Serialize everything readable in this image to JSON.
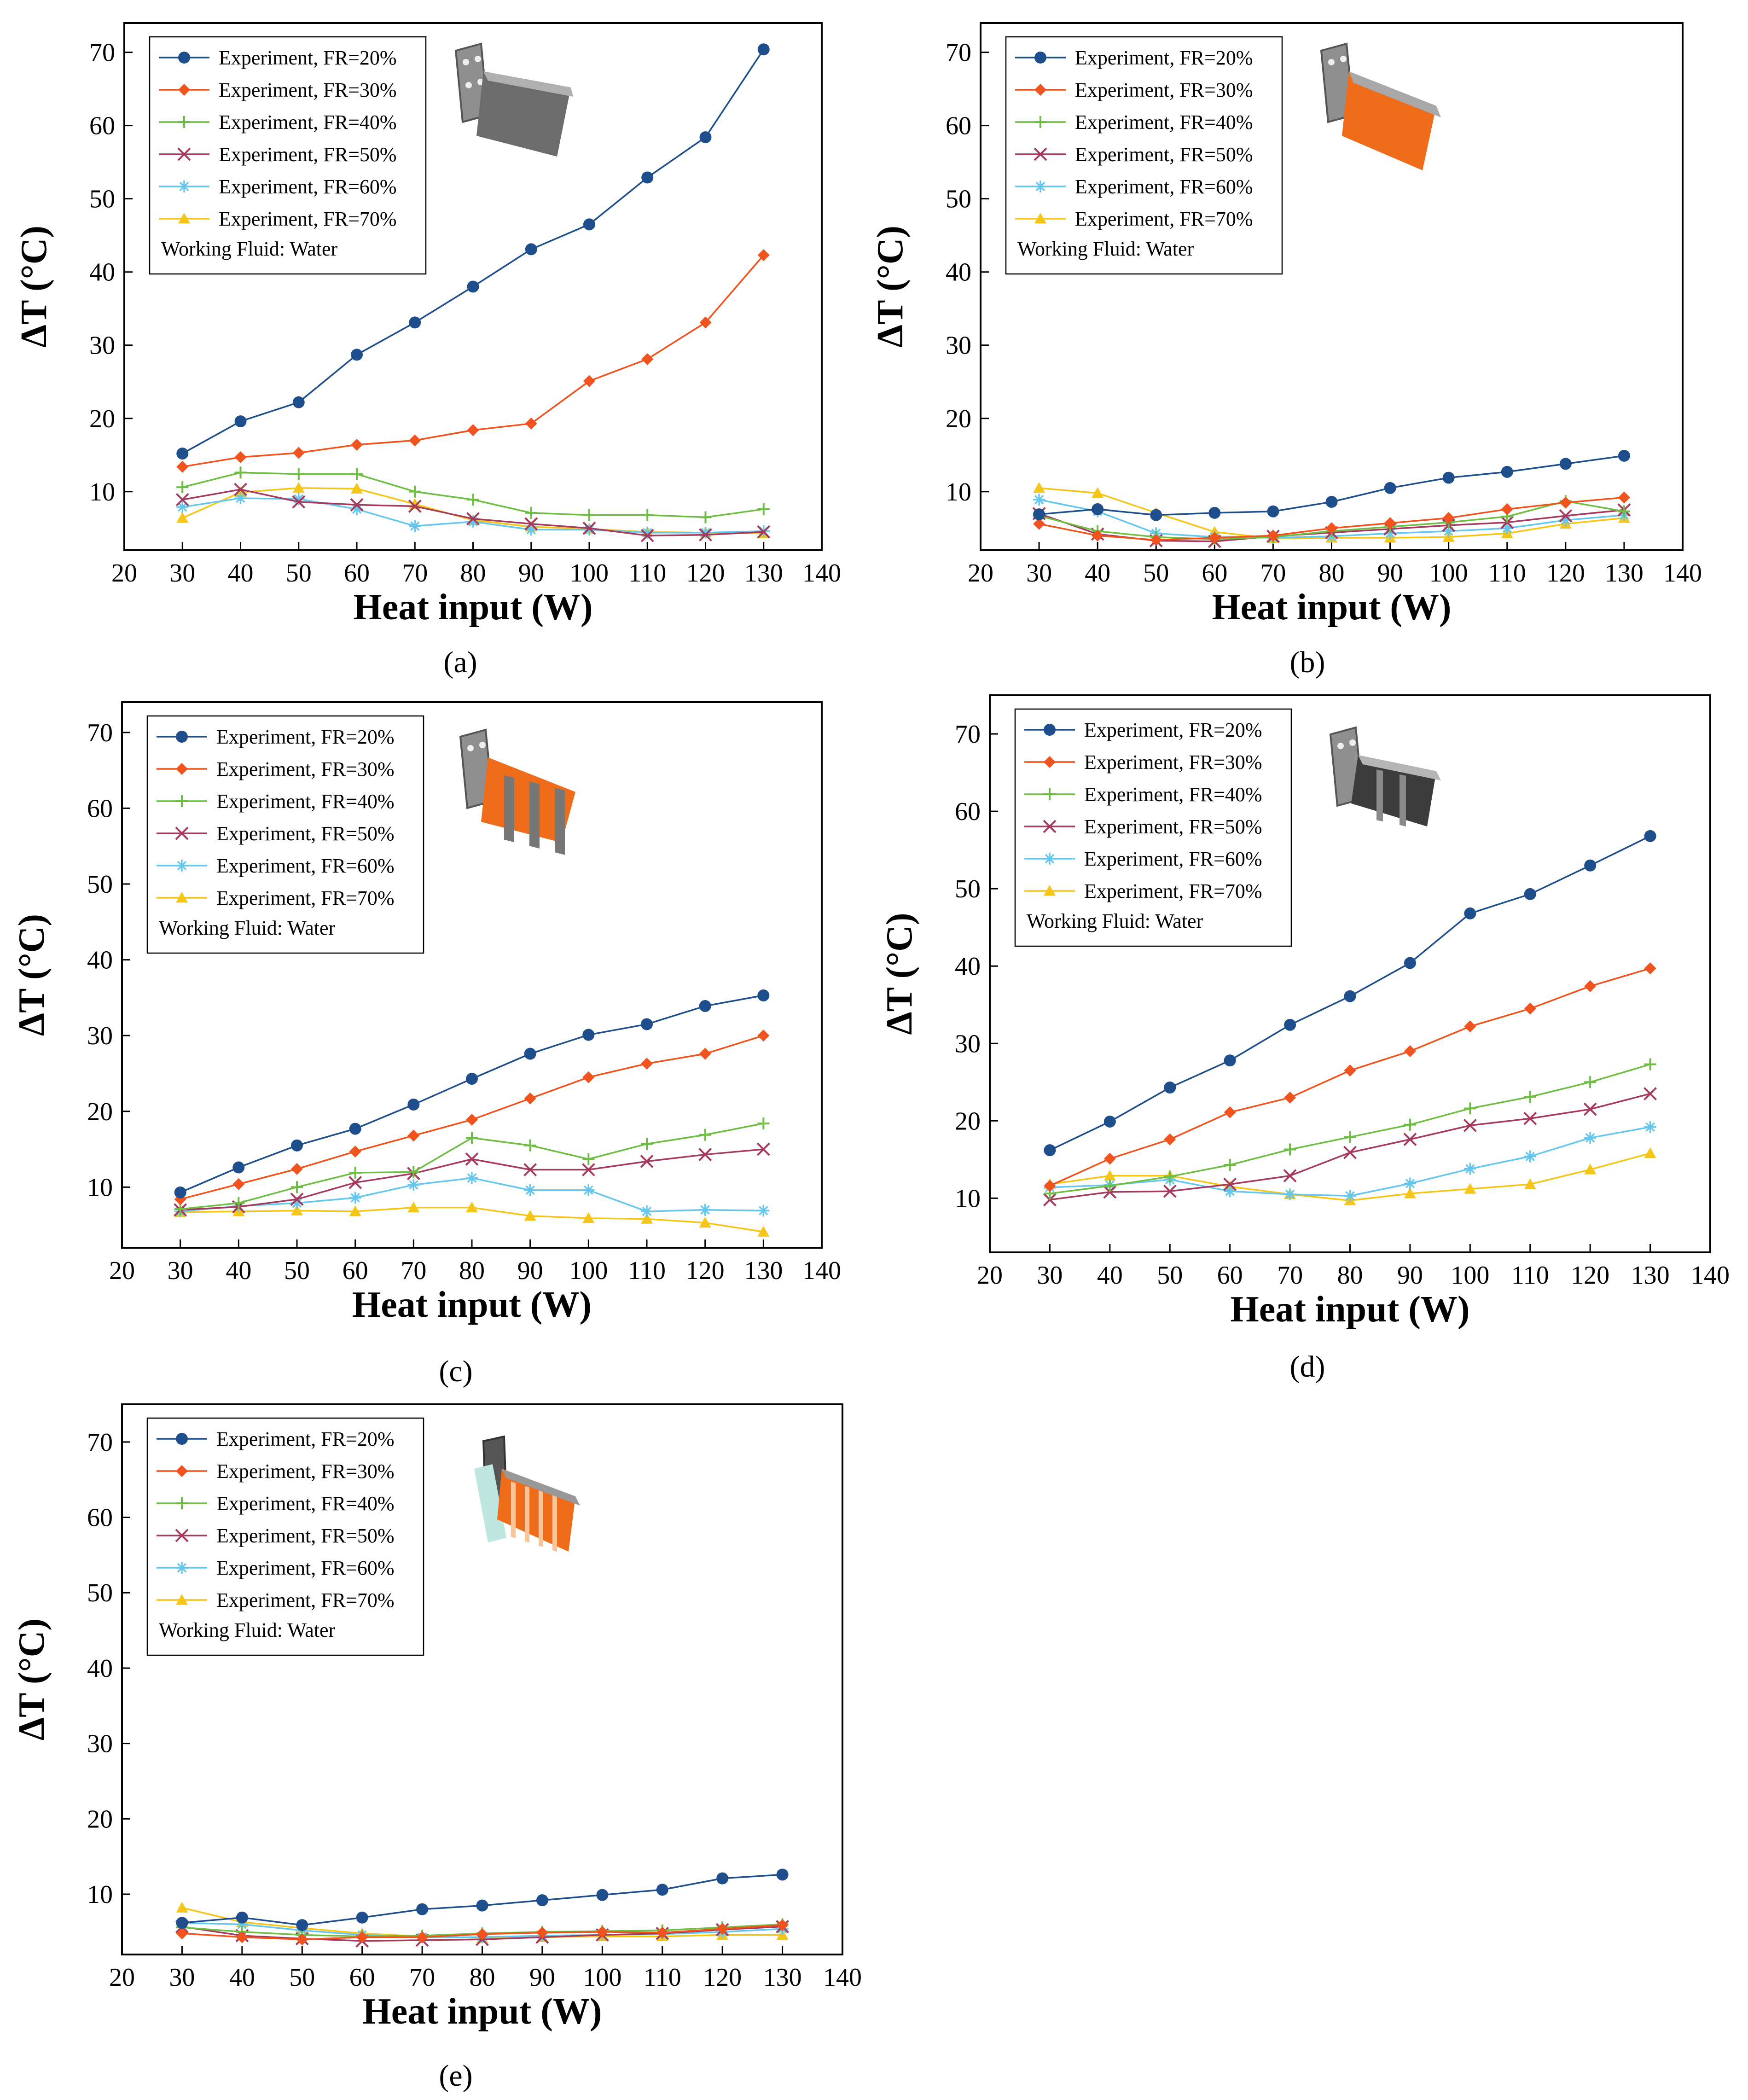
{
  "figure": {
    "panel_labels": [
      "(a)",
      "(b)",
      "(c)",
      "(d)",
      "(e)"
    ]
  },
  "colors": {
    "FR=20%": "#1f4e8c",
    "FR=30%": "#f0531e",
    "FR=40%": "#6fbe44",
    "FR=50%": "#a63a5c",
    "FR=60%": "#66c7ee",
    "FR=70%": "#f5c518"
  },
  "markers": {
    "FR=20%": "circle",
    "FR=30%": "diamond",
    "FR=40%": "plus",
    "FR=50%": "cross",
    "FR=60%": "star",
    "FR=70%": "triangle"
  },
  "chart_data": [
    {
      "type": "line",
      "panel": "(a)",
      "title": "",
      "xlabel": "Heat input (W)",
      "ylabel": "ΔT (°C)",
      "xlim": [
        20,
        140
      ],
      "ylim": [
        2,
        74
      ],
      "xticks": [
        20,
        30,
        40,
        50,
        60,
        70,
        80,
        90,
        100,
        110,
        120,
        130,
        140
      ],
      "yticks": [
        10,
        20,
        30,
        40,
        50,
        60,
        70
      ],
      "legend_note": "Working Fluid: Water",
      "x": [
        30,
        40,
        50,
        60,
        70,
        80,
        90,
        100,
        110,
        120,
        130
      ],
      "series": [
        {
          "name": "Experiment, FR=20%",
          "key": "FR=20%",
          "values": [
            15.2,
            19.6,
            22.2,
            28.7,
            33.1,
            38.0,
            43.1,
            46.5,
            52.9,
            58.4,
            70.4
          ]
        },
        {
          "name": "Experiment, FR=30%",
          "key": "FR=30%",
          "values": [
            13.4,
            14.7,
            15.3,
            16.4,
            17.0,
            18.4,
            19.3,
            25.1,
            28.1,
            33.1,
            42.3
          ]
        },
        {
          "name": "Experiment, FR=40%",
          "key": "FR=40%",
          "values": [
            10.6,
            12.6,
            12.4,
            12.4,
            10.0,
            8.9,
            7.1,
            6.8,
            6.8,
            6.5,
            7.6
          ]
        },
        {
          "name": "Experiment, FR=50%",
          "key": "FR=50%",
          "values": [
            8.9,
            10.3,
            8.6,
            8.2,
            8.0,
            6.3,
            5.6,
            5.0,
            4.0,
            4.1,
            4.5
          ]
        },
        {
          "name": "Experiment, FR=60%",
          "key": "FR=60%",
          "values": [
            7.9,
            9.1,
            9.0,
            7.6,
            5.3,
            5.9,
            4.8,
            4.8,
            4.4,
            4.4,
            4.6
          ]
        },
        {
          "name": "Experiment, FR=70%",
          "key": "FR=70%",
          "values": [
            6.4,
            9.9,
            10.5,
            10.4,
            8.3,
            6.1,
            5.2,
            4.9,
            4.5,
            4.4,
            4.3
          ]
        }
      ]
    },
    {
      "type": "line",
      "panel": "(b)",
      "title": "",
      "xlabel": "Heat input (W)",
      "ylabel": "ΔT (°C)",
      "xlim": [
        20,
        140
      ],
      "ylim": [
        2,
        74
      ],
      "xticks": [
        20,
        30,
        40,
        50,
        60,
        70,
        80,
        90,
        100,
        110,
        120,
        130,
        140
      ],
      "yticks": [
        10,
        20,
        30,
        40,
        50,
        60,
        70
      ],
      "legend_note": "Working Fluid: Water",
      "x": [
        30,
        40,
        50,
        60,
        70,
        80,
        90,
        100,
        110,
        120,
        130
      ],
      "series": [
        {
          "name": "Experiment, FR=20%",
          "key": "FR=20%",
          "values": [
            6.9,
            7.6,
            6.8,
            7.1,
            7.3,
            8.6,
            10.5,
            11.9,
            12.7,
            13.8,
            14.9
          ]
        },
        {
          "name": "Experiment, FR=30%",
          "key": "FR=30%",
          "values": [
            5.6,
            4.0,
            3.4,
            3.7,
            4.0,
            5.0,
            5.7,
            6.4,
            7.6,
            8.5,
            9.2
          ]
        },
        {
          "name": "Experiment, FR=40%",
          "key": "FR=40%",
          "values": [
            6.7,
            4.6,
            3.8,
            3.5,
            3.8,
            4.6,
            5.2,
            5.8,
            6.6,
            8.7,
            7.3
          ]
        },
        {
          "name": "Experiment, FR=50%",
          "key": "FR=50%",
          "values": [
            7.0,
            4.2,
            3.3,
            3.2,
            3.9,
            4.4,
            4.9,
            5.4,
            5.8,
            6.7,
            7.5
          ]
        },
        {
          "name": "Experiment, FR=60%",
          "key": "FR=60%",
          "values": [
            8.9,
            7.3,
            4.3,
            3.8,
            3.7,
            3.9,
            4.3,
            4.6,
            5.0,
            6.1,
            6.8
          ]
        },
        {
          "name": "Experiment, FR=70%",
          "key": "FR=70%",
          "values": [
            10.5,
            9.8,
            7.1,
            4.5,
            3.6,
            3.7,
            3.7,
            3.8,
            4.3,
            5.6,
            6.4
          ]
        }
      ]
    },
    {
      "type": "line",
      "panel": "(c)",
      "title": "",
      "xlabel": "Heat input (W)",
      "ylabel": "ΔT (°C)",
      "xlim": [
        20,
        140
      ],
      "ylim": [
        2,
        74
      ],
      "xticks": [
        20,
        30,
        40,
        50,
        60,
        70,
        80,
        90,
        100,
        110,
        120,
        130,
        140
      ],
      "yticks": [
        10,
        20,
        30,
        40,
        50,
        60,
        70
      ],
      "legend_note": "Working Fluid: Water",
      "x": [
        30,
        40,
        50,
        60,
        70,
        80,
        90,
        100,
        110,
        120,
        130
      ],
      "series": [
        {
          "name": "Experiment, FR=20%",
          "key": "FR=20%",
          "values": [
            9.3,
            12.6,
            15.5,
            17.7,
            20.9,
            24.3,
            27.6,
            30.1,
            31.5,
            33.9,
            35.3
          ]
        },
        {
          "name": "Experiment, FR=30%",
          "key": "FR=30%",
          "values": [
            8.4,
            10.4,
            12.4,
            14.7,
            16.8,
            18.9,
            21.7,
            24.5,
            26.3,
            27.6,
            30.0
          ]
        },
        {
          "name": "Experiment, FR=40%",
          "key": "FR=40%",
          "values": [
            7.1,
            7.9,
            10.0,
            11.9,
            12.0,
            16.5,
            15.5,
            13.7,
            15.7,
            16.9,
            18.4
          ]
        },
        {
          "name": "Experiment, FR=50%",
          "key": "FR=50%",
          "values": [
            7.0,
            7.4,
            8.4,
            10.6,
            11.8,
            13.7,
            12.3,
            12.3,
            13.4,
            14.3,
            15.0
          ]
        },
        {
          "name": "Experiment, FR=60%",
          "key": "FR=60%",
          "values": [
            6.8,
            7.5,
            7.9,
            8.6,
            10.3,
            11.2,
            9.6,
            9.6,
            6.8,
            7.0,
            6.9
          ]
        },
        {
          "name": "Experiment, FR=70%",
          "key": "FR=70%",
          "values": [
            6.7,
            6.8,
            6.9,
            6.8,
            7.3,
            7.3,
            6.2,
            5.9,
            5.8,
            5.3,
            4.1
          ]
        }
      ]
    },
    {
      "type": "line",
      "panel": "(d)",
      "title": "",
      "xlabel": "Heat input (W)",
      "ylabel": "ΔT (°C)",
      "xlim": [
        20,
        140
      ],
      "ylim": [
        3,
        75
      ],
      "xticks": [
        20,
        30,
        40,
        50,
        60,
        70,
        80,
        90,
        100,
        110,
        120,
        130,
        140
      ],
      "yticks": [
        10,
        20,
        30,
        40,
        50,
        60,
        70
      ],
      "legend_note": "Working Fluid: Water",
      "x": [
        30,
        40,
        50,
        60,
        70,
        80,
        90,
        100,
        110,
        120,
        130
      ],
      "series": [
        {
          "name": "Experiment, FR=20%",
          "key": "FR=20%",
          "values": [
            16.2,
            19.9,
            24.3,
            27.8,
            32.4,
            36.1,
            40.4,
            46.8,
            49.3,
            53.0,
            56.8
          ]
        },
        {
          "name": "Experiment, FR=30%",
          "key": "FR=30%",
          "values": [
            11.6,
            15.1,
            17.6,
            21.1,
            23.0,
            26.5,
            29.0,
            32.2,
            34.5,
            37.4,
            39.7
          ]
        },
        {
          "name": "Experiment, FR=40%",
          "key": "FR=40%",
          "values": [
            10.6,
            11.6,
            12.8,
            14.3,
            16.3,
            17.9,
            19.5,
            21.6,
            23.1,
            25.0,
            27.3
          ]
        },
        {
          "name": "Experiment, FR=50%",
          "key": "FR=50%",
          "values": [
            9.8,
            10.8,
            10.9,
            11.8,
            12.9,
            15.9,
            17.6,
            19.4,
            20.3,
            21.5,
            23.5
          ]
        },
        {
          "name": "Experiment, FR=60%",
          "key": "FR=60%",
          "values": [
            11.4,
            11.7,
            12.4,
            10.9,
            10.5,
            10.3,
            11.9,
            13.8,
            15.4,
            17.8,
            19.2
          ]
        },
        {
          "name": "Experiment, FR=70%",
          "key": "FR=70%",
          "values": [
            11.8,
            12.9,
            12.9,
            11.5,
            10.5,
            9.7,
            10.6,
            11.2,
            11.8,
            13.7,
            15.8
          ]
        }
      ]
    },
    {
      "type": "line",
      "panel": "(e)",
      "title": "",
      "xlabel": "Heat input (W)",
      "ylabel": "ΔT (°C)",
      "xlim": [
        20,
        140
      ],
      "ylim": [
        2,
        75
      ],
      "xticks": [
        20,
        30,
        40,
        50,
        60,
        70,
        80,
        90,
        100,
        110,
        120,
        130,
        140
      ],
      "yticks": [
        10,
        20,
        30,
        40,
        50,
        60,
        70
      ],
      "legend_note": "Working Fluid: Water",
      "x": [
        30,
        40,
        50,
        60,
        70,
        80,
        90,
        100,
        110,
        120,
        130
      ],
      "series": [
        {
          "name": "Experiment, FR=20%",
          "key": "FR=20%",
          "values": [
            6.2,
            6.9,
            5.9,
            6.9,
            8.0,
            8.5,
            9.2,
            9.9,
            10.6,
            12.1,
            12.6
          ]
        },
        {
          "name": "Experiment, FR=30%",
          "key": "FR=30%",
          "values": [
            4.8,
            4.3,
            4.0,
            4.3,
            4.3,
            4.7,
            4.9,
            5.0,
            4.9,
            5.4,
            5.9
          ]
        },
        {
          "name": "Experiment, FR=40%",
          "key": "FR=40%",
          "values": [
            5.6,
            5.0,
            4.6,
            4.4,
            4.5,
            4.8,
            5.0,
            5.1,
            5.2,
            5.6,
            6.0
          ]
        },
        {
          "name": "Experiment, FR=50%",
          "key": "FR=50%",
          "values": [
            5.7,
            4.5,
            4.1,
            3.8,
            3.9,
            4.0,
            4.3,
            4.6,
            4.8,
            5.3,
            5.7
          ]
        },
        {
          "name": "Experiment, FR=60%",
          "key": "FR=60%",
          "values": [
            6.2,
            6.0,
            5.2,
            4.6,
            4.3,
            4.3,
            4.5,
            4.6,
            4.7,
            5.0,
            5.4
          ]
        },
        {
          "name": "Experiment, FR=70%",
          "key": "FR=70%",
          "values": [
            8.2,
            6.3,
            5.5,
            4.8,
            4.4,
            4.2,
            4.3,
            4.4,
            4.4,
            4.6,
            4.6
          ]
        }
      ]
    }
  ]
}
